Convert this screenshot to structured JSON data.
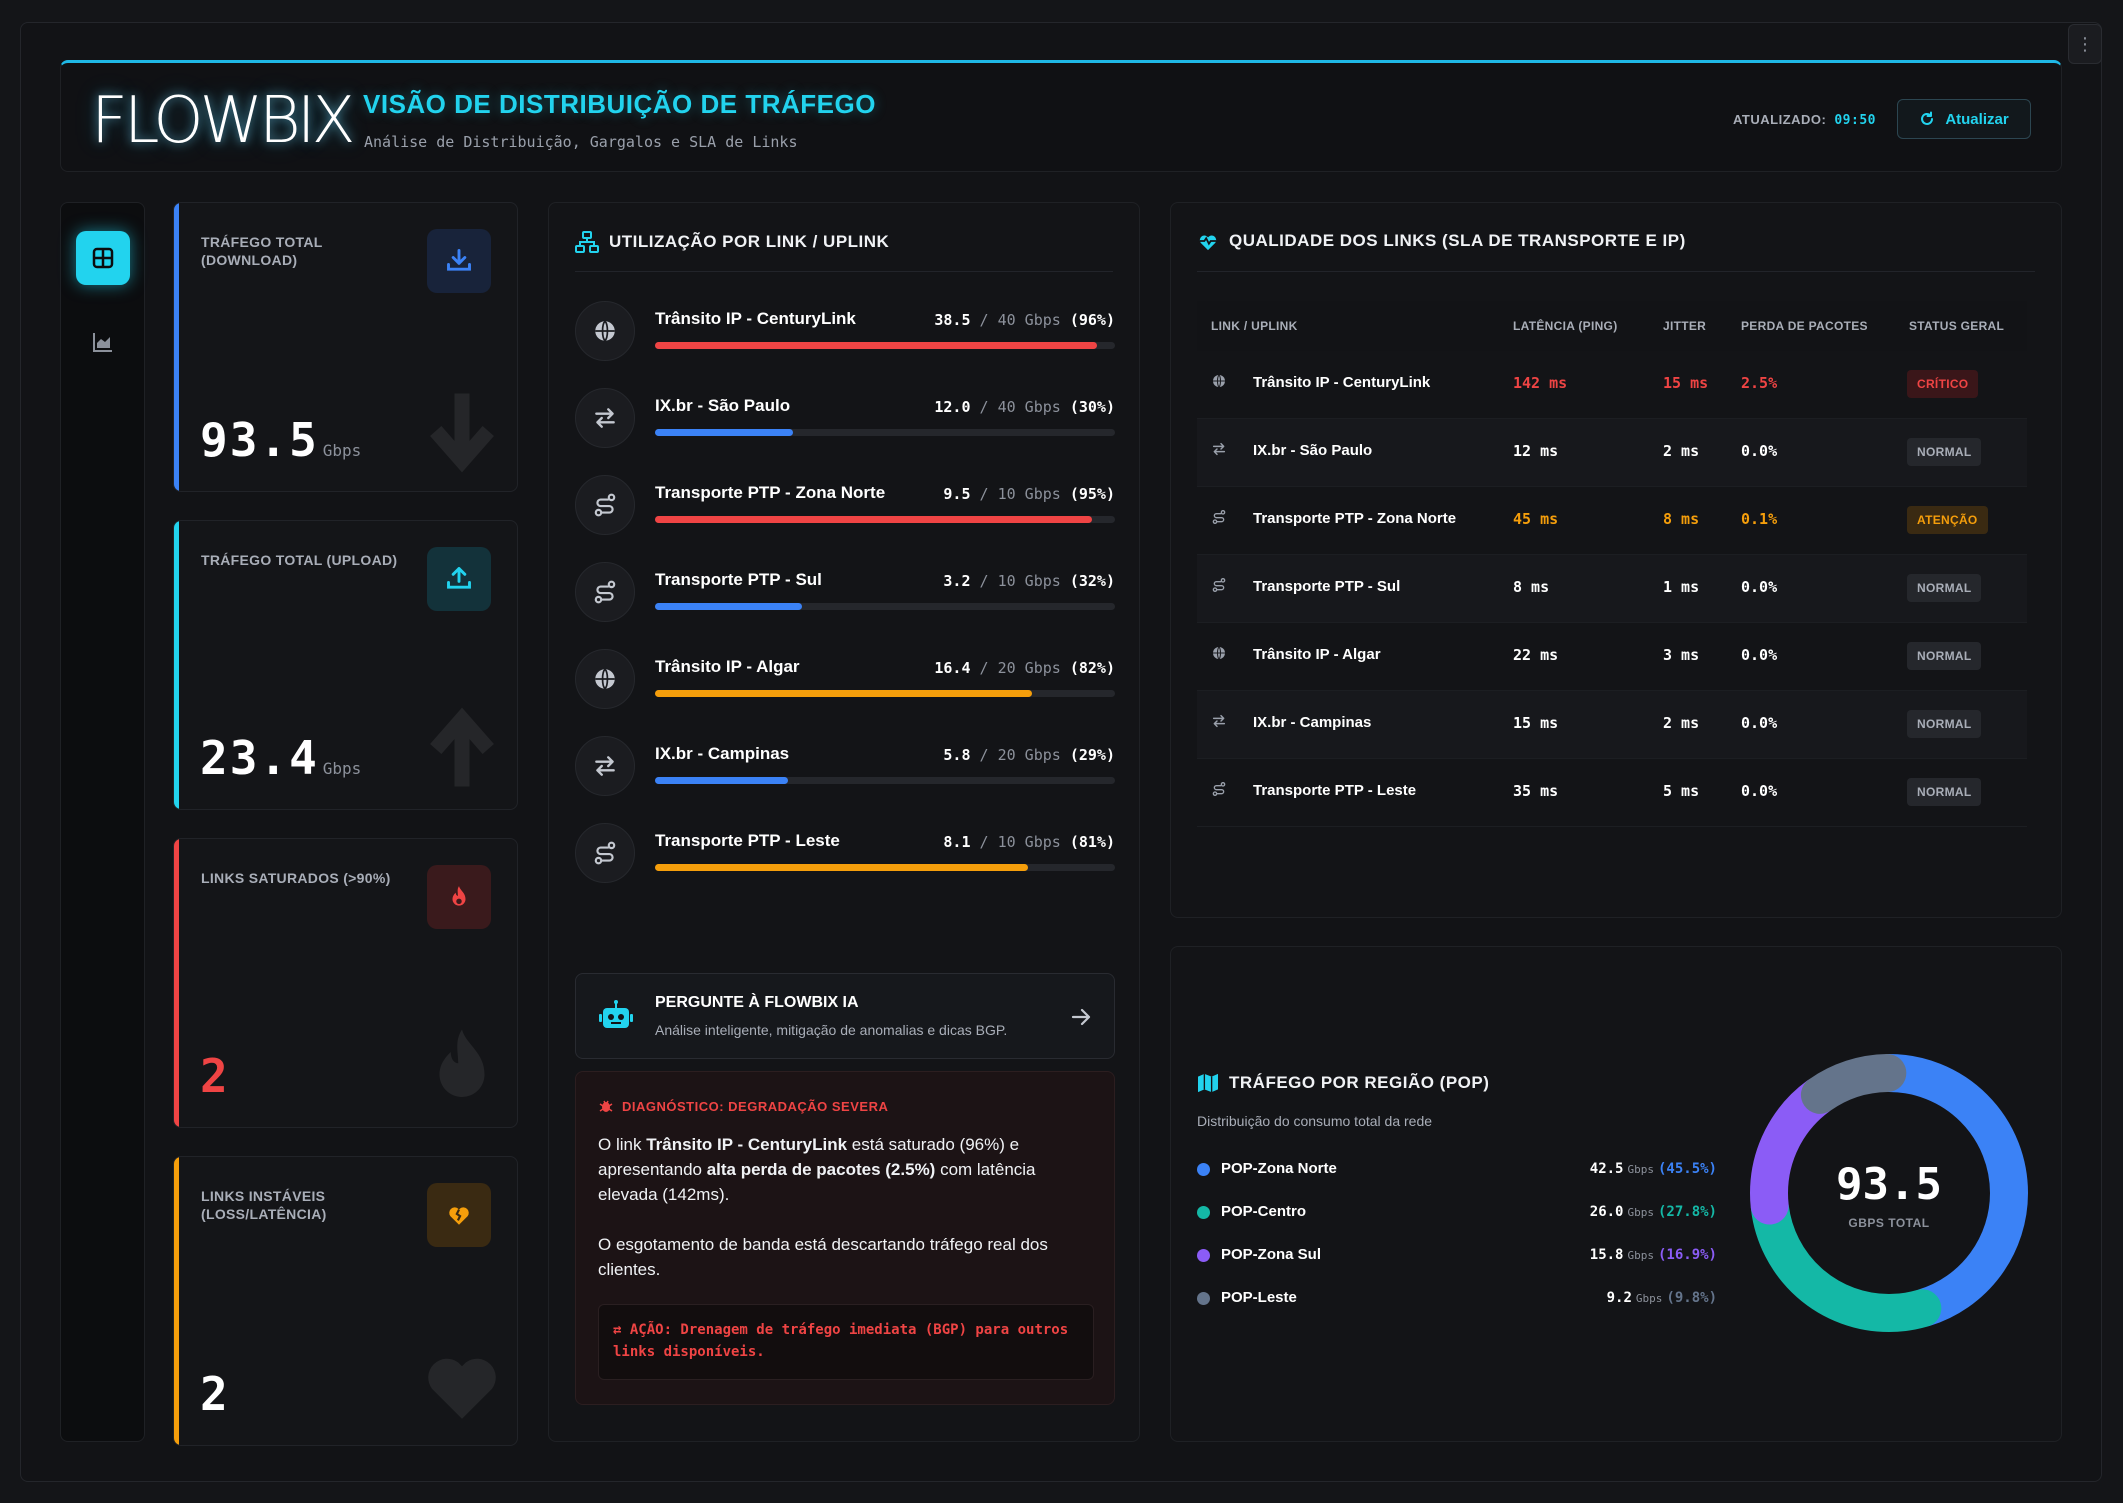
{
  "header": {
    "logo": "FLOWBIX",
    "title": "VISÃO DE DISTRIBUIÇÃO DE TRÁFEGO",
    "subtitle": "Análise de Distribuição, Gargalos e SLA de Links",
    "updated_label": "ATUALIZADO:",
    "updated_time": "09:50",
    "refresh_label": "Atualizar"
  },
  "sidebar": {
    "items": [
      {
        "icon": "dashboard-icon",
        "active": true
      },
      {
        "icon": "area-chart-icon",
        "active": false
      }
    ]
  },
  "kpis": [
    {
      "label": "TRÁFEGO TOTAL (DOWNLOAD)",
      "value": "93.5",
      "unit": "Gbps",
      "icon": "download-icon",
      "color": "#3b82f6"
    },
    {
      "label": "TRÁFEGO TOTAL (UPLOAD)",
      "value": "23.4",
      "unit": "Gbps",
      "icon": "upload-icon",
      "color": "#22d3ee"
    },
    {
      "label": "LINKS SATURADOS (>90%)",
      "value": "2",
      "unit": "",
      "icon": "fire-icon",
      "color": "#ef4444"
    },
    {
      "label": "LINKS INSTÁVEIS (LOSS/LATÊNCIA)",
      "value": "2",
      "unit": "",
      "icon": "broken-heart-icon",
      "color": "#f59e0b"
    }
  ],
  "utilization": {
    "title": "UTILIZAÇÃO POR LINK / UPLINK",
    "links": [
      {
        "name": "Trânsito IP - CenturyLink",
        "used": "38.5",
        "cap": "40 Gbps",
        "pct_label": "(96%)",
        "pct": 96,
        "icon": "globe-icon",
        "color": "#ef4444"
      },
      {
        "name": "IX.br - São Paulo",
        "used": "12.0",
        "cap": "40 Gbps",
        "pct_label": "(30%)",
        "pct": 30,
        "icon": "exchange-icon",
        "color": "#3b82f6"
      },
      {
        "name": "Transporte PTP - Zona Norte",
        "used": "9.5",
        "cap": "10 Gbps",
        "pct_label": "(95%)",
        "pct": 95,
        "icon": "route-icon",
        "color": "#ef4444"
      },
      {
        "name": "Transporte PTP - Sul",
        "used": "3.2",
        "cap": "10 Gbps",
        "pct_label": "(32%)",
        "pct": 32,
        "icon": "route-icon",
        "color": "#3b82f6"
      },
      {
        "name": "Trânsito IP - Algar",
        "used": "16.4",
        "cap": "20 Gbps",
        "pct_label": "(82%)",
        "pct": 82,
        "icon": "globe-icon",
        "color": "#f59e0b"
      },
      {
        "name": "IX.br - Campinas",
        "used": "5.8",
        "cap": "20 Gbps",
        "pct_label": "(29%)",
        "pct": 29,
        "icon": "exchange-icon",
        "color": "#3b82f6"
      },
      {
        "name": "Transporte PTP - Leste",
        "used": "8.1",
        "cap": "10 Gbps",
        "pct_label": "(81%)",
        "pct": 81,
        "icon": "route-icon",
        "color": "#f59e0b"
      }
    ]
  },
  "ai": {
    "title": "PERGUNTE À FLOWBIX IA",
    "subtitle": "Análise inteligente, mitigação de anomalias e dicas BGP."
  },
  "diagnosis": {
    "heading": "DIAGNÓSTICO: DEGRADAÇÃO SEVERA",
    "p1_a": "O link ",
    "p1_b": "Trânsito IP - CenturyLink",
    "p1_c": " está saturado (96%) e apresentando ",
    "p1_d": "alta perda de pacotes (2.5%)",
    "p1_e": " com latência elevada (142ms).",
    "p2": "O esgotamento de banda está descartando tráfego real dos clientes.",
    "action": "AÇÃO: Drenagem de tráfego imediata (BGP) para outros links disponíveis."
  },
  "quality": {
    "title": "QUALIDADE DOS LINKS (SLA DE TRANSPORTE E IP)",
    "headers": [
      "LINK / UPLINK",
      "LATÊNCIA (PING)",
      "JITTER",
      "PERDA DE PACOTES",
      "STATUS GERAL"
    ],
    "rows": [
      {
        "icon": "globe-icon",
        "name": "Trânsito IP - CenturyLink",
        "latency": "142 ms",
        "jitter": "15 ms",
        "loss": "2.5%",
        "status": "CRÍTICO",
        "level": "crit"
      },
      {
        "icon": "exchange-icon",
        "name": "IX.br - São Paulo",
        "latency": "12 ms",
        "jitter": "2 ms",
        "loss": "0.0%",
        "status": "NORMAL",
        "level": "ok"
      },
      {
        "icon": "route-icon",
        "name": "Transporte PTP - Zona Norte",
        "latency": "45 ms",
        "jitter": "8 ms",
        "loss": "0.1%",
        "status": "ATENÇÃO",
        "level": "warn"
      },
      {
        "icon": "route-icon",
        "name": "Transporte PTP - Sul",
        "latency": "8 ms",
        "jitter": "1 ms",
        "loss": "0.0%",
        "status": "NORMAL",
        "level": "ok"
      },
      {
        "icon": "globe-icon",
        "name": "Trânsito IP - Algar",
        "latency": "22 ms",
        "jitter": "3 ms",
        "loss": "0.0%",
        "status": "NORMAL",
        "level": "ok"
      },
      {
        "icon": "exchange-icon",
        "name": "IX.br - Campinas",
        "latency": "15 ms",
        "jitter": "2 ms",
        "loss": "0.0%",
        "status": "NORMAL",
        "level": "ok"
      },
      {
        "icon": "route-icon",
        "name": "Transporte PTP - Leste",
        "latency": "35 ms",
        "jitter": "5 ms",
        "loss": "0.0%",
        "status": "NORMAL",
        "level": "ok"
      }
    ]
  },
  "regions": {
    "title": "TRÁFEGO POR REGIÃO (POP)",
    "subtitle": "Distribuição do consumo total da rede",
    "total": "93.5",
    "total_label": "GBPS TOTAL",
    "unit": "Gbps",
    "items": [
      {
        "name": "POP-Zona Norte",
        "value": "42.5",
        "pct_label": "(45.5%)",
        "pct": 45.5,
        "color": "#3b82f6"
      },
      {
        "name": "POP-Centro",
        "value": "26.0",
        "pct_label": "(27.8%)",
        "pct": 27.8,
        "color": "#14b8a6"
      },
      {
        "name": "POP-Zona Sul",
        "value": "15.8",
        "pct_label": "(16.9%)",
        "pct": 16.9,
        "color": "#8b5cf6"
      },
      {
        "name": "POP-Leste",
        "value": "9.2",
        "pct_label": "(9.8%)",
        "pct": 9.8,
        "color": "#64748b"
      }
    ]
  }
}
